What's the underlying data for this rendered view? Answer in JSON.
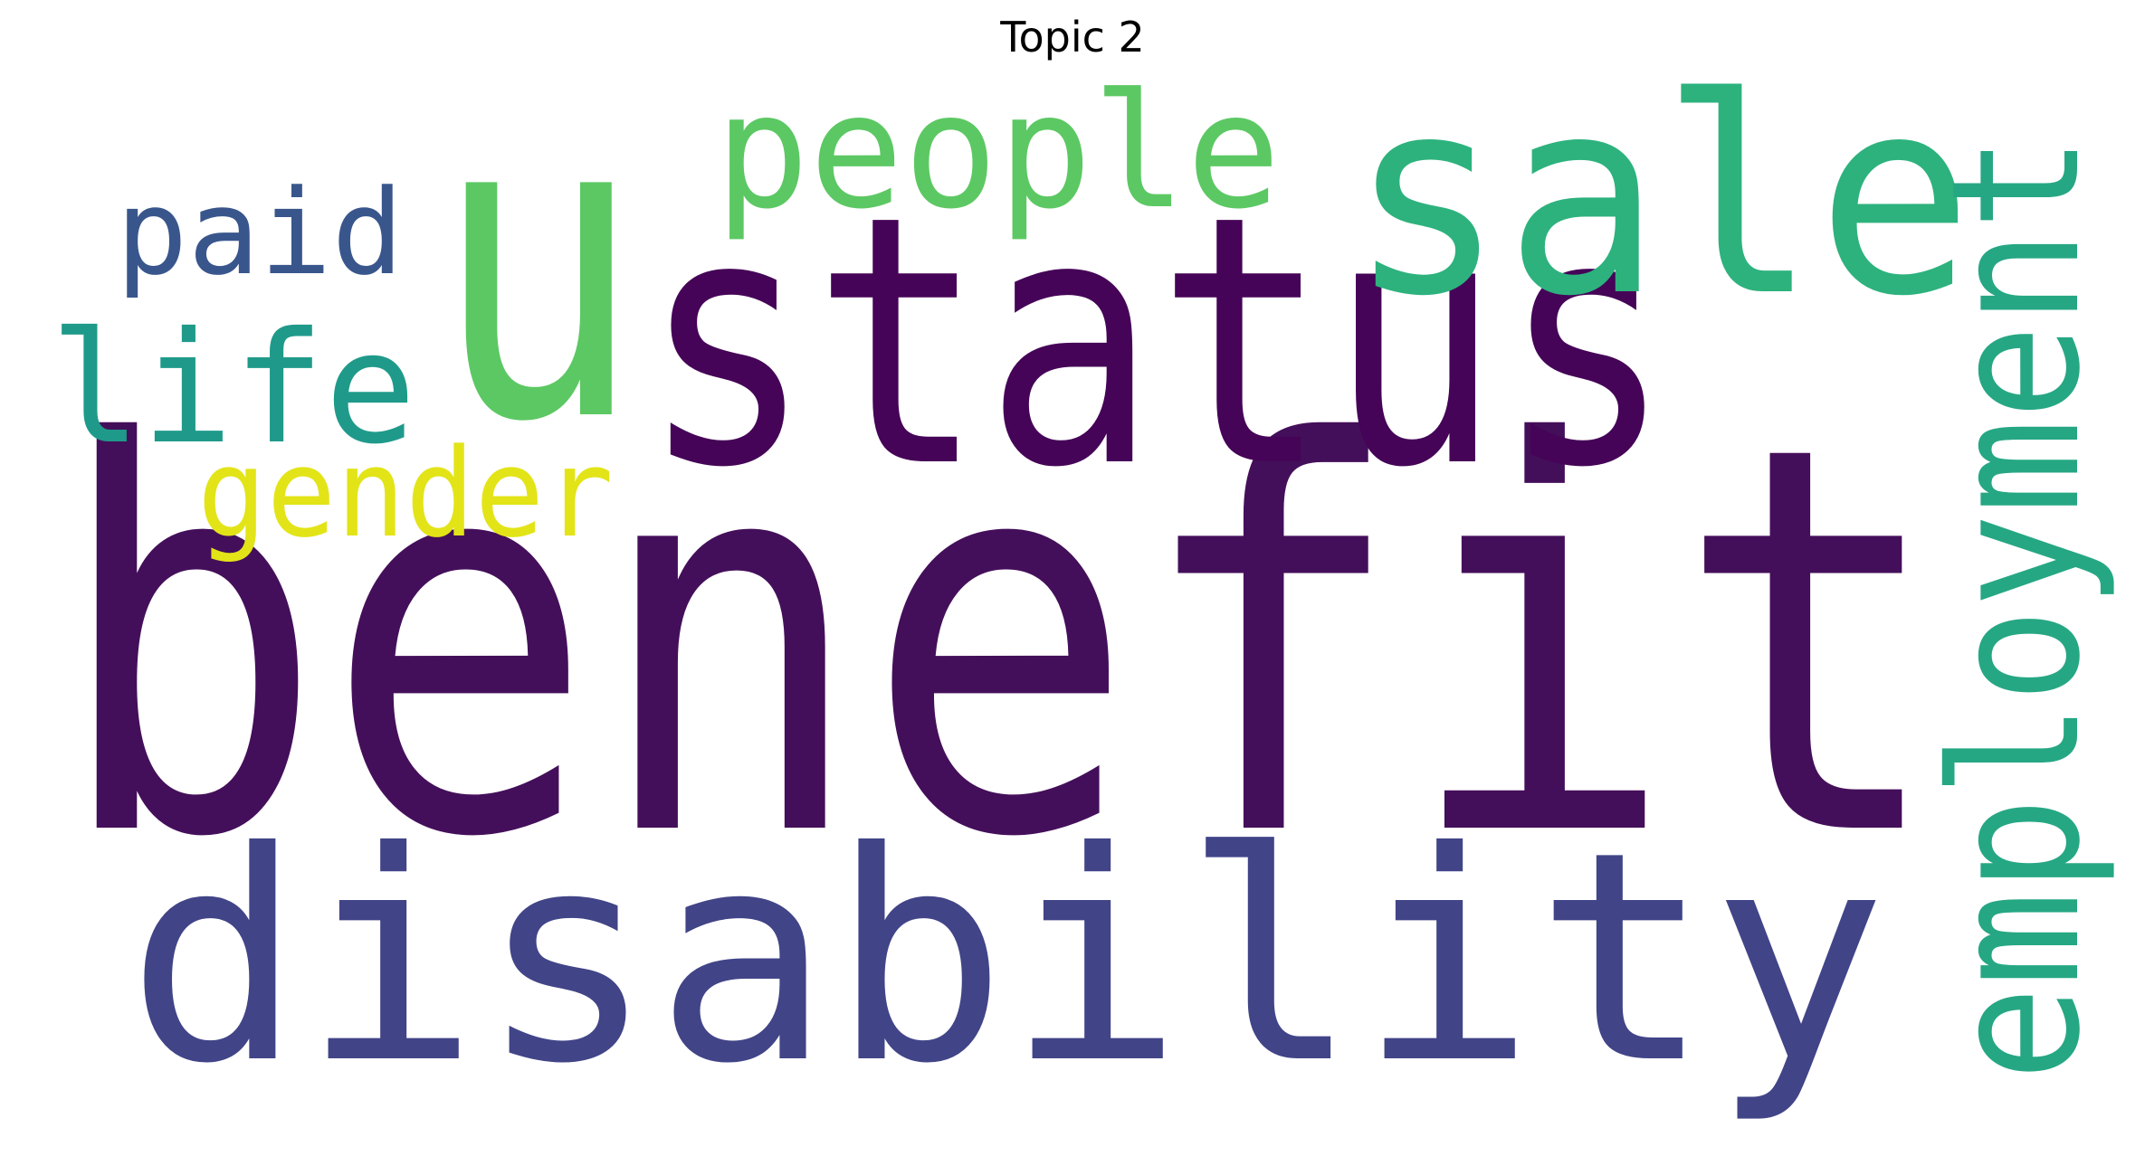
{
  "title": "Topic 2",
  "words": [
    {
      "text": "benefit",
      "color": "#440f5a"
    },
    {
      "text": "u",
      "color": "#5cc863"
    },
    {
      "text": "status",
      "color": "#450457"
    },
    {
      "text": "sale",
      "color": "#2db27d"
    },
    {
      "text": "disability",
      "color": "#414487"
    },
    {
      "text": "people",
      "color": "#5cc863"
    },
    {
      "text": "employment",
      "color": "#26a784"
    },
    {
      "text": "life",
      "color": "#1f9a8a"
    },
    {
      "text": "paid",
      "color": "#39568c"
    },
    {
      "text": "gender",
      "color": "#e2e418"
    }
  ]
}
